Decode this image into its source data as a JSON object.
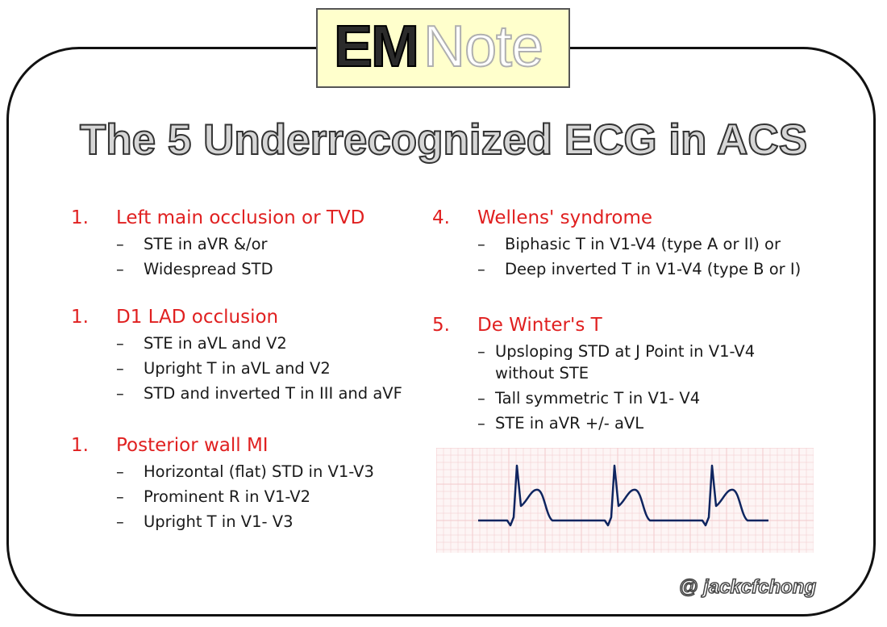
{
  "logo": {
    "em": "EM",
    "note": "Note"
  },
  "title": "The 5 Underrecognized ECG in ACS",
  "left_sections": [
    {
      "number": "1.",
      "heading": "Left main occlusion or TVD",
      "items": [
        "STE in aVR &/or",
        "Widespread STD"
      ]
    },
    {
      "number": "1.",
      "heading": "D1 LAD occlusion",
      "items": [
        "STE in aVL and V2",
        "Upright T in aVL and V2",
        "STD and inverted T in III and aVF"
      ]
    },
    {
      "number": "1.",
      "heading": "Posterior wall MI",
      "items": [
        "Horizontal (flat) STD in V1-V3",
        "Prominent R in V1-V2",
        "Upright T in V1- V3"
      ]
    }
  ],
  "right_sections": [
    {
      "number": "4.",
      "heading": "Wellens' syndrome",
      "items": [
        "Biphasic T in V1-V4 (type A or II) or",
        "Deep inverted T in V1-V4 (type B or I)"
      ]
    },
    {
      "number": "5.",
      "heading": "De Winter's T",
      "items": [
        {
          "line1": "Upsloping STD at J Point in V1-V4",
          "line2": "without STE"
        },
        {
          "line1": "Tall symmetric T in V1- V4",
          "line2": ""
        },
        {
          "line1": "STE in aVR +/- aVL",
          "line2": ""
        }
      ]
    }
  ],
  "dash_symbol": "–",
  "ecg": {
    "grid_color": "#f2c9cc",
    "trace_color": "#0f2560",
    "beats": 3
  },
  "colors": {
    "heading_red": "#e02020",
    "border": "#111111",
    "logo_bg": "#ffffcc"
  },
  "credit": "@ jackcfchong"
}
